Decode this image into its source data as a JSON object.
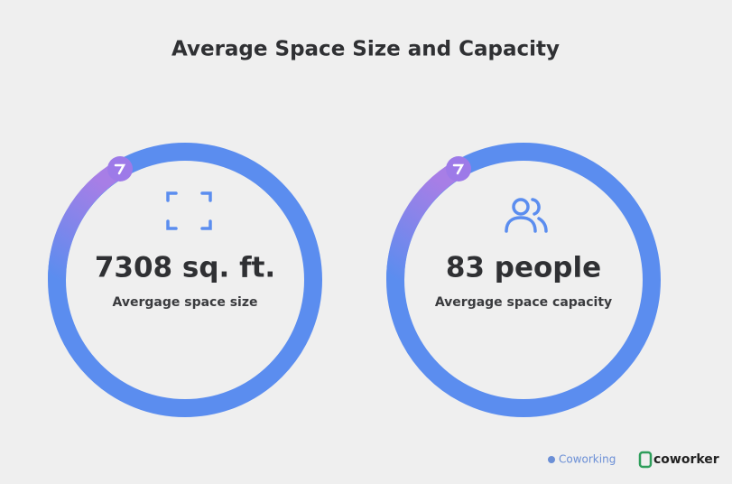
{
  "header": {
    "title": "Average Space Size and Capacity"
  },
  "cards": [
    {
      "value": "7308 sq. ft.",
      "label": "Avergage space size"
    },
    {
      "value": "83 people",
      "label": "Avergage space capacity"
    }
  ],
  "footer": {
    "logos": [
      "Coworking",
      "coworker"
    ]
  }
}
